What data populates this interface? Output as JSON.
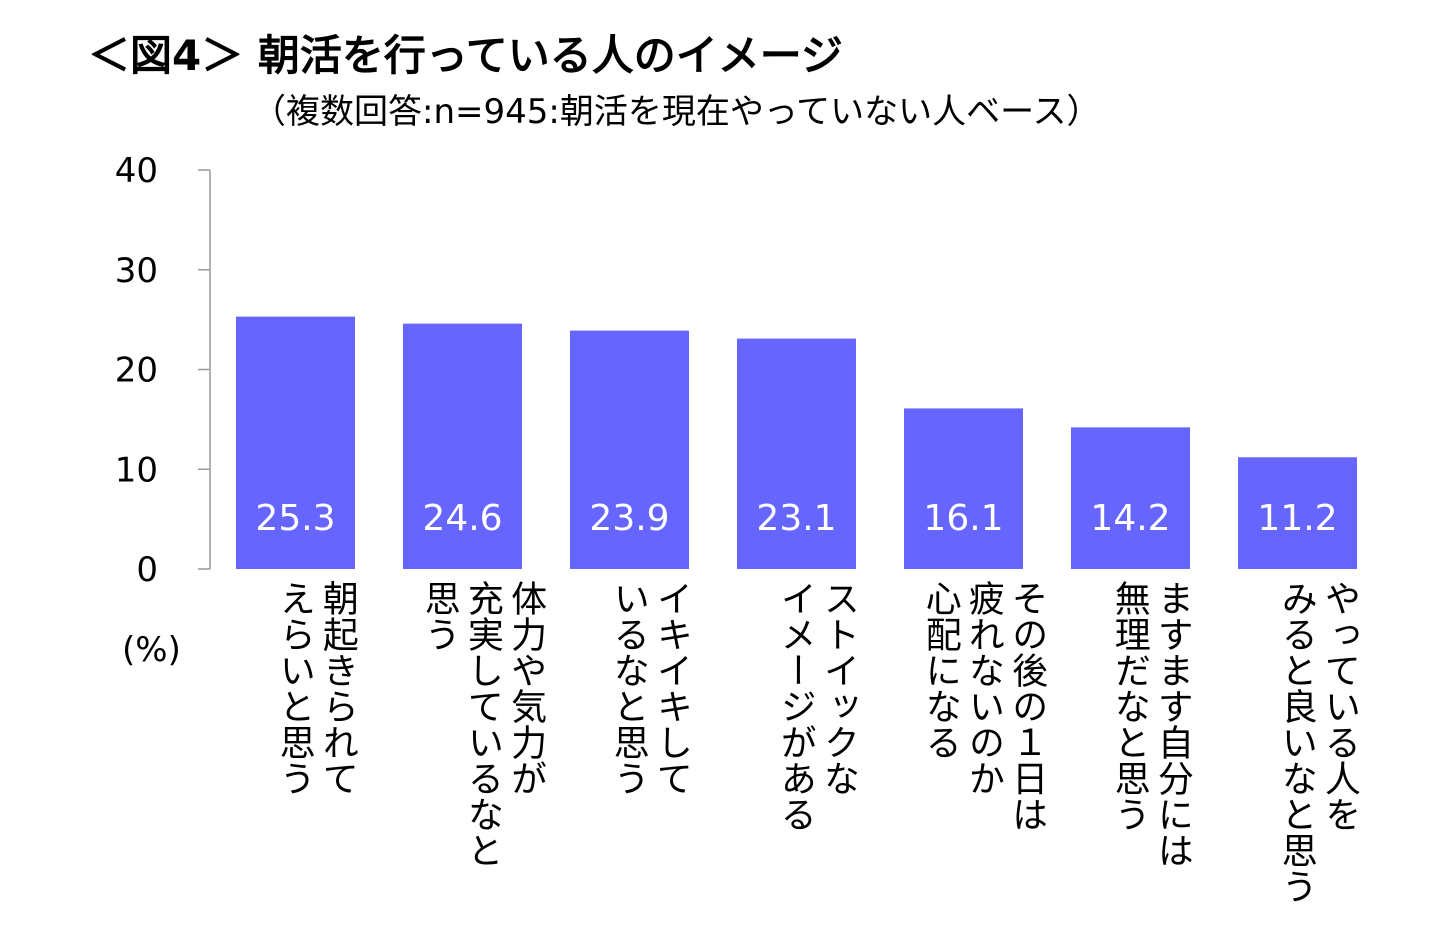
{
  "header": {
    "title": "＜図4＞ 朝活を行っている人のイメージ",
    "subtitle": "（複数回答:n=945:朝活を現在やっていない人ベース）"
  },
  "colors": {
    "bar": "#6666ff",
    "axis": "#999999",
    "label_on_bar": "#ffffff"
  },
  "chart_data": {
    "type": "bar",
    "title": "＜図4＞ 朝活を行っている人のイメージ",
    "subtitle": "（複数回答:n=945:朝活を現在やっていない人ベース）",
    "ylabel": "(%)",
    "ylim": [
      0,
      40
    ],
    "yticks": [
      0,
      10,
      20,
      30,
      40
    ],
    "grid": false,
    "categories": [
      [
        "朝起きられて",
        "えらいと思う"
      ],
      [
        "体力や気力が",
        "充実しているなと",
        "思う"
      ],
      [
        "イキイキして",
        "いるなと思う"
      ],
      [
        "ストイックな",
        "イメージがある"
      ],
      [
        "その後の１日は",
        "疲れないのか",
        "心配になる"
      ],
      [
        "ますます自分には",
        "無理だなと思う"
      ],
      [
        "やっている人を",
        "みると良いなと思う"
      ]
    ],
    "values": [
      25.3,
      24.6,
      23.9,
      23.1,
      16.1,
      14.2,
      11.2
    ],
    "value_labels": [
      "25.3",
      "24.6",
      "23.9",
      "23.1",
      "16.1",
      "14.2",
      "11.2"
    ]
  }
}
